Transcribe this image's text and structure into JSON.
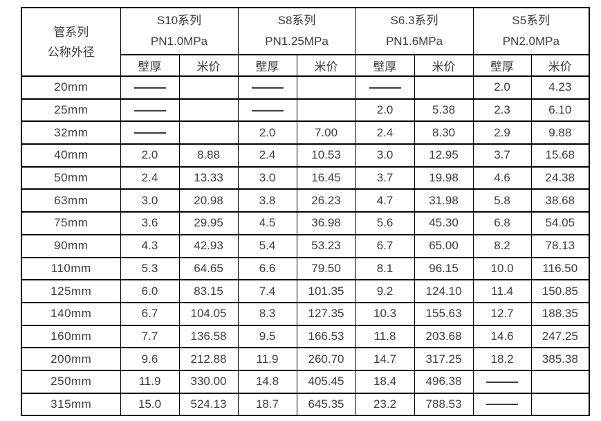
{
  "colors": {
    "text": "#3c3c3c",
    "border": "#000000",
    "background": "#ffffff"
  },
  "table": {
    "corner_header": {
      "line1": "管系列",
      "line2": "公称外径"
    },
    "column_groups": [
      {
        "series": "S10系列",
        "pressure": "PN1.0MPa"
      },
      {
        "series": "S8系列",
        "pressure": "PN1.25MPa"
      },
      {
        "series": "S6.3系列",
        "pressure": "PN1.6MPa"
      },
      {
        "series": "S5系列",
        "pressure": "PN2.0MPa"
      }
    ],
    "sub_headers": {
      "thickness": "壁厚",
      "price": "米价"
    },
    "dash_placeholder": "——",
    "rows": [
      {
        "size": "20mm",
        "cells": [
          "——",
          "",
          "——",
          "",
          "——",
          "",
          "2.0",
          "4.23"
        ]
      },
      {
        "size": "25mm",
        "cells": [
          "——",
          "",
          "——",
          "",
          "2.0",
          "5.38",
          "2.3",
          "6.10"
        ]
      },
      {
        "size": "32mm",
        "cells": [
          "——",
          "",
          "2.0",
          "7.00",
          "2.4",
          "8.30",
          "2.9",
          "9.88"
        ]
      },
      {
        "size": "40mm",
        "cells": [
          "2.0",
          "8.88",
          "2.4",
          "10.53",
          "3.0",
          "12.95",
          "3.7",
          "15.68"
        ]
      },
      {
        "size": "50mm",
        "cells": [
          "2.4",
          "13.33",
          "3.0",
          "16.45",
          "3.7",
          "19.98",
          "4.6",
          "24.38"
        ]
      },
      {
        "size": "63mm",
        "cells": [
          "3.0",
          "20.98",
          "3.8",
          "26.23",
          "4.7",
          "31.98",
          "5.8",
          "38.68"
        ]
      },
      {
        "size": "75mm",
        "cells": [
          "3.6",
          "29.95",
          "4.5",
          "36.98",
          "5.6",
          "45.30",
          "6.8",
          "54.05"
        ]
      },
      {
        "size": "90mm",
        "cells": [
          "4.3",
          "42.93",
          "5.4",
          "53.23",
          "6.7",
          "65.00",
          "8.2",
          "78.13"
        ]
      },
      {
        "size": "110mm",
        "cells": [
          "5.3",
          "64.65",
          "6.6",
          "79.50",
          "8.1",
          "96.15",
          "10.0",
          "116.50"
        ]
      },
      {
        "size": "125mm",
        "cells": [
          "6.0",
          "83.15",
          "7.4",
          "101.35",
          "9.2",
          "124.10",
          "11.4",
          "150.85"
        ]
      },
      {
        "size": "140mm",
        "cells": [
          "6.7",
          "104.05",
          "8.3",
          "127.35",
          "10.3",
          "155.63",
          "12.7",
          "188.35"
        ]
      },
      {
        "size": "160mm",
        "cells": [
          "7.7",
          "136.58",
          "9.5",
          "166.53",
          "11.8",
          "203.68",
          "14.6",
          "247.25"
        ]
      },
      {
        "size": "200mm",
        "cells": [
          "9.6",
          "212.88",
          "11.9",
          "260.70",
          "14.7",
          "317.25",
          "18.2",
          "385.38"
        ]
      },
      {
        "size": "250mm",
        "cells": [
          "11.9",
          "330.00",
          "14.8",
          "405.45",
          "18.4",
          "496.38",
          "——",
          ""
        ]
      },
      {
        "size": "315mm",
        "cells": [
          "15.0",
          "524.13",
          "18.7",
          "645.35",
          "23.2",
          "788.53",
          "——",
          ""
        ]
      }
    ]
  }
}
